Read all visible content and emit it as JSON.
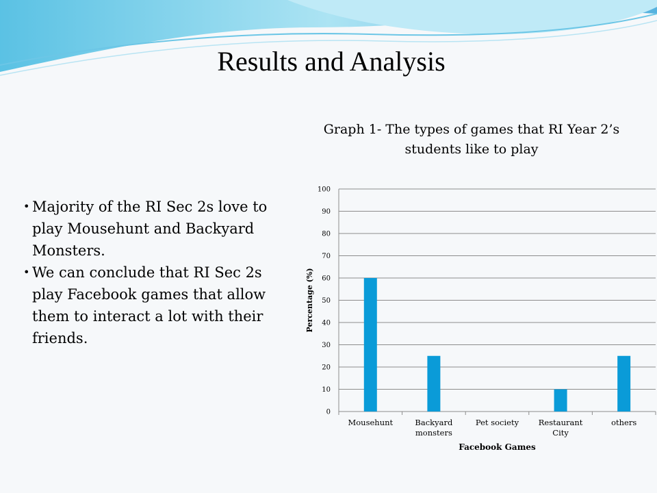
{
  "slide": {
    "title": "Results and Analysis",
    "bullets": [
      "Majority of the RI Sec 2s love to play Mousehunt and Backyard Monsters.",
      "We can conclude that RI Sec 2s play Facebook games that allow them to interact a lot with their friends."
    ]
  },
  "colors": {
    "bar": "#0a9bd8",
    "grid": "#8c8c8c",
    "header_wave": "#4fc3e3"
  },
  "chart_data": {
    "type": "bar",
    "title": "Graph 1- The types of games that RI Year 2’s students like to play",
    "categories": [
      "Mousehunt",
      "Backyard monsters",
      "Pet society",
      "Restaurant City",
      "others"
    ],
    "category_lines": [
      [
        "Mousehunt"
      ],
      [
        "Backyard",
        "monsters"
      ],
      [
        "Pet society"
      ],
      [
        "Restaurant",
        "City"
      ],
      [
        "others"
      ]
    ],
    "values": [
      60,
      25,
      0,
      10,
      25
    ],
    "xlabel": "Facebook Games",
    "ylabel": "Percentage (%)",
    "ylim": [
      0,
      100
    ],
    "yticks": [
      0,
      10,
      20,
      30,
      40,
      50,
      60,
      70,
      80,
      90,
      100
    ],
    "grid": true,
    "legend": "none"
  }
}
